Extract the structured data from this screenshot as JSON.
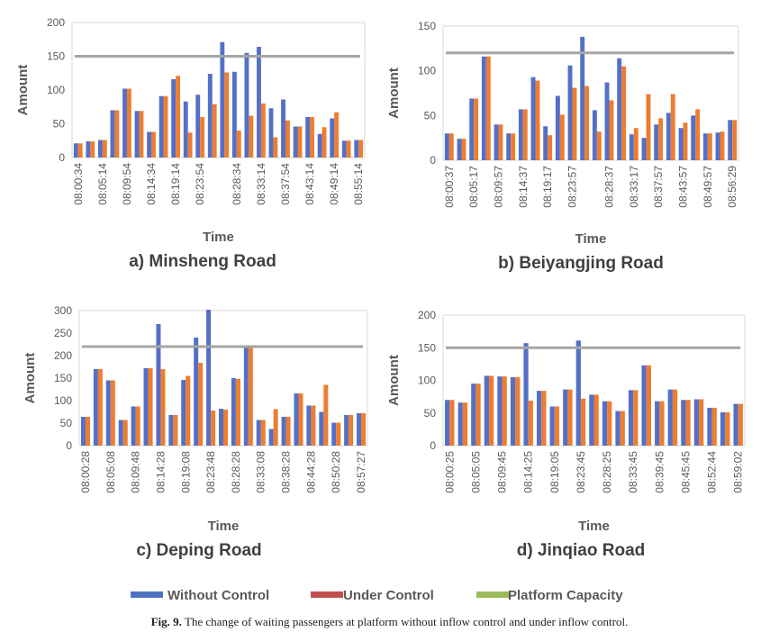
{
  "colors": {
    "without": "#5470c6",
    "under": "#ed7d31",
    "capacity_line": "#a5a5a5",
    "legend_under": "#c0504d",
    "legend_capacity": "#9bbb59"
  },
  "legend": {
    "items": [
      {
        "name": "Without Control",
        "color": "#4f72c0"
      },
      {
        "name": "Under Control",
        "color": "#c0504d"
      },
      {
        "name": "Platform Capacity",
        "color": "#9bbb59"
      }
    ]
  },
  "caption": {
    "label": "Fig. 9.",
    "text": "The change of waiting passengers at platform without inflow control and under inflow control."
  },
  "chart_data": [
    {
      "type": "bar",
      "title": "a) Minsheng Road",
      "xlabel": "Time",
      "ylabel": "Amount",
      "ylim": [
        0,
        200
      ],
      "yticks": [
        0,
        50,
        100,
        150,
        200
      ],
      "capacity": 150,
      "xtick_labels": [
        "08:00:34",
        "08:05:14",
        "08:09:54",
        "08:14:34",
        "08:19:14",
        "08:23:54",
        "08:28:34",
        "08:33:14",
        "08:37:54",
        "08:43:14",
        "08:49:14",
        "08:55:14"
      ],
      "series": [
        {
          "name": "Without Control",
          "values": [
            21,
            24,
            26,
            70,
            102,
            69,
            38,
            91,
            116,
            83,
            93,
            124,
            171,
            127,
            155,
            164,
            73,
            86,
            46,
            60,
            35,
            58,
            25,
            26
          ]
        },
        {
          "name": "Under Control",
          "values": [
            21,
            24,
            26,
            70,
            102,
            69,
            38,
            91,
            121,
            37,
            60,
            79,
            126,
            40,
            62,
            80,
            30,
            55,
            46,
            60,
            45,
            67,
            25,
            26
          ]
        }
      ]
    },
    {
      "type": "bar",
      "title": "b) Beiyangjing Road",
      "xlabel": "Time",
      "ylabel": "Amount",
      "ylim": [
        0,
        150
      ],
      "yticks": [
        0,
        50,
        100,
        150
      ],
      "capacity": 120,
      "xtick_labels": [
        "08:00:37",
        "08:05:17",
        "08:09:57",
        "08:14:37",
        "08:19:17",
        "08:23:57",
        "08:28:37",
        "08:33:17",
        "08:37:57",
        "08:43:57",
        "08:49:57",
        "08:56:29"
      ],
      "series": [
        {
          "name": "Without Control",
          "values": [
            30,
            24,
            69,
            116,
            40,
            30,
            57,
            93,
            38,
            72,
            106,
            138,
            56,
            87,
            114,
            29,
            25,
            40,
            53,
            36,
            50,
            30,
            31,
            45
          ]
        },
        {
          "name": "Under Control",
          "values": [
            30,
            24,
            69,
            116,
            40,
            30,
            57,
            89,
            28,
            51,
            81,
            83,
            32,
            67,
            105,
            36,
            74,
            47,
            74,
            42,
            57,
            30,
            32,
            45
          ]
        }
      ]
    },
    {
      "type": "bar",
      "title": "c) Deping Road",
      "xlabel": "Time",
      "ylabel": "Amount",
      "ylim": [
        0,
        300
      ],
      "yticks": [
        0,
        50,
        100,
        150,
        200,
        250,
        300
      ],
      "capacity": 220,
      "xtick_labels": [
        "08:00:28",
        "08:05:08",
        "08:09:48",
        "08:14:28",
        "08:19:08",
        "08:23:48",
        "08:28:28",
        "08:33:08",
        "08:38:28",
        "08:44:28",
        "08:50:28",
        "08:57:27"
      ],
      "series": [
        {
          "name": "Without Control",
          "values": [
            64,
            170,
            145,
            57,
            87,
            172,
            270,
            68,
            146,
            240,
            302,
            82,
            150,
            217,
            57,
            37,
            64,
            116,
            89,
            75,
            51,
            68,
            72
          ]
        },
        {
          "name": "Under Control",
          "values": [
            64,
            170,
            145,
            57,
            87,
            172,
            170,
            68,
            155,
            184,
            78,
            80,
            148,
            217,
            57,
            81,
            64,
            116,
            89,
            135,
            51,
            68,
            72
          ]
        }
      ]
    },
    {
      "type": "bar",
      "title": "d) Jinqiao Road",
      "xlabel": "Time",
      "ylabel": "Amount",
      "ylim": [
        0,
        200
      ],
      "yticks": [
        0,
        50,
        100,
        150,
        200
      ],
      "capacity": 150,
      "xtick_labels": [
        "08:00:25",
        "08:05:05",
        "08:09:45",
        "08:14:25",
        "08:19:05",
        "08:23:45",
        "08:28:25",
        "08:33:45",
        "08:39:45",
        "08:45:45",
        "08:52:44",
        "08:59:02"
      ],
      "series": [
        {
          "name": "Without Control",
          "values": [
            70,
            66,
            95,
            107,
            106,
            105,
            157,
            84,
            60,
            86,
            161,
            78,
            68,
            53,
            85,
            123,
            68,
            86,
            70,
            71,
            58,
            51,
            64
          ]
        },
        {
          "name": "Under Control",
          "values": [
            70,
            66,
            95,
            107,
            106,
            105,
            69,
            84,
            60,
            86,
            72,
            78,
            68,
            53,
            85,
            123,
            68,
            86,
            70,
            71,
            58,
            51,
            64
          ]
        }
      ]
    }
  ]
}
